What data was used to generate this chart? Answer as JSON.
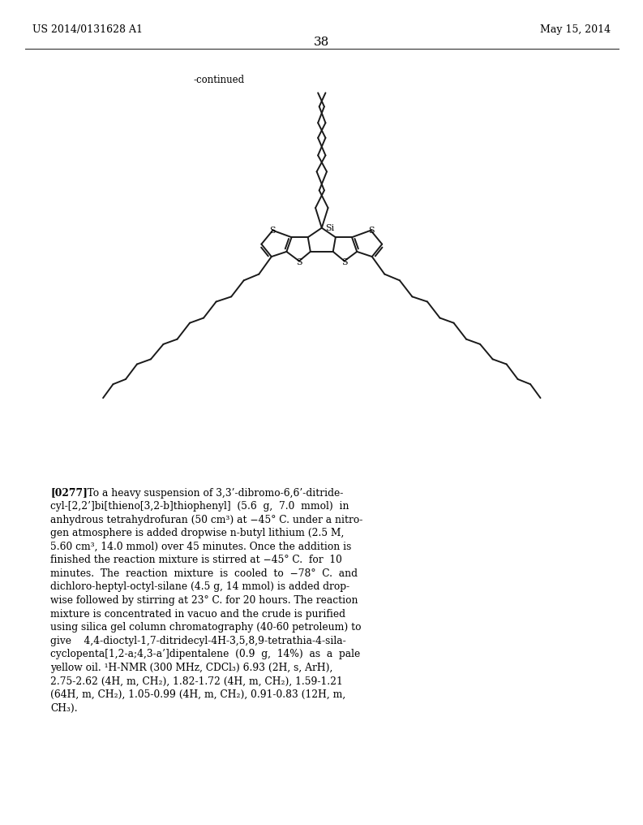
{
  "header_left": "US 2014/0131628 A1",
  "header_right": "May 15, 2014",
  "page_number": "38",
  "continued_label": "-continued",
  "background_color": "#ffffff",
  "text_color": "#000000",
  "line_color": "#1a1a1a",
  "paragraph_lines": [
    "[0277]   To a heavy suspension of 3,3’-dibromo-6,6’-ditride-",
    "cyl-[2,2’]bi[thieno[3,2-b]thiophenyl]  (5.6  g,  7.0  mmol)  in",
    "anhydrous tetrahydrofuran (50 cm³) at −45° C. under a nitro-",
    "gen atmosphere is added dropwise n-butyl lithium (2.5 M,",
    "5.60 cm³, 14.0 mmol) over 45 minutes. Once the addition is",
    "finished the reaction mixture is stirred at −45° C.  for  10",
    "minutes.  The  reaction  mixture  is  cooled  to  −78°  C.  and",
    "dichloro-heptyl-octyl-silane (4.5 g, 14 mmol) is added drop-",
    "wise followed by stirring at 23° C. for 20 hours. The reaction",
    "mixture is concentrated in vacuo and the crude is purified",
    "using silica gel column chromatography (40-60 petroleum) to",
    "give    4,4-dioctyl-1,7-ditridecyl-4H-3,5,8,9-tetrathia-4-sila-",
    "cyclopenta[1,2-a;4,3-a’]dipentalene  (0.9  g,  14%)  as  a  pale",
    "yellow oil. ¹H-NMR (300 MHz, CDCl₃) 6.93 (2H, s, ArH),",
    "2.75-2.62 (4H, m, CH₂), 1.82-1.72 (4H, m, CH₂), 1.59-1.21",
    "(64H, m, CH₂), 1.05-0.99 (4H, m, CH₂), 0.91-0.83 (12H, m,",
    "CH₃)."
  ]
}
